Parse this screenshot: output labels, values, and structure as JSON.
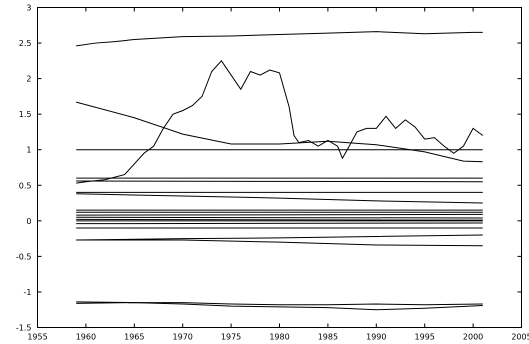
{
  "chart_data": {
    "type": "line",
    "title": "",
    "xlabel": "",
    "ylabel": "",
    "xlim": [
      1955,
      2005
    ],
    "ylim": [
      -1.5,
      3
    ],
    "grid": false,
    "legend": "none",
    "line_color": "#000000",
    "xticks": [
      1955,
      1960,
      1965,
      1970,
      1975,
      1980,
      1985,
      1990,
      1995,
      2000,
      2005
    ],
    "yticks": [
      -1.5,
      -1,
      -0.5,
      0,
      0.5,
      1,
      1.5,
      2,
      2.5,
      3
    ],
    "xtick_labels": [
      "1955",
      "1960",
      "1965",
      "1970",
      "1975",
      "1980",
      "1985",
      "1990",
      "1995",
      "2000",
      "2005"
    ],
    "ytick_labels": [
      "-1.5",
      "-1",
      "-0.5",
      "0",
      "0.5",
      "1",
      "1.5",
      "2",
      "2.5",
      "3"
    ],
    "series": [
      {
        "x": [
          1959,
          1961,
          1963,
          1965,
          1970,
          1975,
          1980,
          1985,
          1990,
          1995,
          2000,
          2001
        ],
        "y": [
          2.46,
          2.5,
          2.52,
          2.55,
          2.59,
          2.6,
          2.62,
          2.64,
          2.66,
          2.63,
          2.65,
          2.65
        ]
      },
      {
        "x": [
          1959,
          1960,
          1962,
          1964,
          1965,
          1966,
          1967,
          1968,
          1969,
          1970,
          1971,
          1972,
          1973,
          1974,
          1975,
          1976,
          1977,
          1978,
          1979,
          1980,
          1981,
          1981.5,
          1982,
          1983,
          1984,
          1985,
          1986,
          1986.5,
          1987,
          1988,
          1989,
          1990,
          1991,
          1992,
          1993,
          1994,
          1995,
          1996,
          1997,
          1998,
          1999,
          2000,
          2001
        ],
        "y": [
          0.53,
          0.55,
          0.58,
          0.65,
          0.8,
          0.95,
          1.05,
          1.3,
          1.5,
          1.55,
          1.62,
          1.75,
          2.1,
          2.25,
          2.05,
          1.85,
          2.1,
          2.05,
          2.12,
          2.08,
          1.6,
          1.2,
          1.1,
          1.13,
          1.05,
          1.13,
          1.05,
          0.88,
          1.0,
          1.25,
          1.3,
          1.3,
          1.47,
          1.3,
          1.42,
          1.32,
          1.15,
          1.17,
          1.05,
          0.95,
          1.05,
          1.3,
          1.2
        ]
      },
      {
        "x": [
          1959,
          1965,
          1970,
          1975,
          1980,
          1985,
          1990,
          1995,
          1999,
          2001
        ],
        "y": [
          1.67,
          1.45,
          1.22,
          1.08,
          1.08,
          1.12,
          1.07,
          0.97,
          0.84,
          0.83
        ]
      },
      {
        "x": [
          1959,
          2001
        ],
        "y": [
          1.0,
          1.0
        ]
      },
      {
        "x": [
          1959,
          2001
        ],
        "y": [
          0.6,
          0.6
        ]
      },
      {
        "x": [
          1959,
          2001
        ],
        "y": [
          0.56,
          0.55
        ]
      },
      {
        "x": [
          1959,
          2001
        ],
        "y": [
          0.4,
          0.4
        ]
      },
      {
        "x": [
          1959,
          1970,
          1980,
          1990,
          2001
        ],
        "y": [
          0.38,
          0.35,
          0.32,
          0.28,
          0.25
        ]
      },
      {
        "x": [
          1959,
          2001
        ],
        "y": [
          0.15,
          0.15
        ]
      },
      {
        "x": [
          1959,
          2001
        ],
        "y": [
          0.12,
          0.12
        ]
      },
      {
        "x": [
          1959,
          2001
        ],
        "y": [
          0.08,
          0.09
        ]
      },
      {
        "x": [
          1959,
          2001
        ],
        "y": [
          0.05,
          0.04
        ]
      },
      {
        "x": [
          1959,
          2001
        ],
        "y": [
          0.02,
          0.01
        ]
      },
      {
        "x": [
          1959,
          2001
        ],
        "y": [
          0.0,
          0.0
        ]
      },
      {
        "x": [
          1959,
          2001
        ],
        "y": [
          -0.04,
          -0.03
        ]
      },
      {
        "x": [
          1959,
          2001
        ],
        "y": [
          -0.1,
          -0.1
        ]
      },
      {
        "x": [
          1959,
          1970,
          1980,
          1990,
          2001
        ],
        "y": [
          -0.27,
          -0.25,
          -0.24,
          -0.22,
          -0.2
        ]
      },
      {
        "x": [
          1959,
          1970,
          1980,
          1990,
          2001
        ],
        "y": [
          -0.27,
          -0.27,
          -0.3,
          -0.34,
          -0.35
        ]
      },
      {
        "x": [
          1959,
          1965,
          1970,
          1975,
          1980,
          1985,
          1990,
          1995,
          2001
        ],
        "y": [
          -1.14,
          -1.15,
          -1.15,
          -1.17,
          -1.18,
          -1.18,
          -1.17,
          -1.18,
          -1.17
        ]
      },
      {
        "x": [
          1959,
          1965,
          1970,
          1975,
          1980,
          1985,
          1990,
          1995,
          2001
        ],
        "y": [
          -1.16,
          -1.15,
          -1.17,
          -1.2,
          -1.21,
          -1.22,
          -1.25,
          -1.23,
          -1.19
        ]
      }
    ]
  }
}
